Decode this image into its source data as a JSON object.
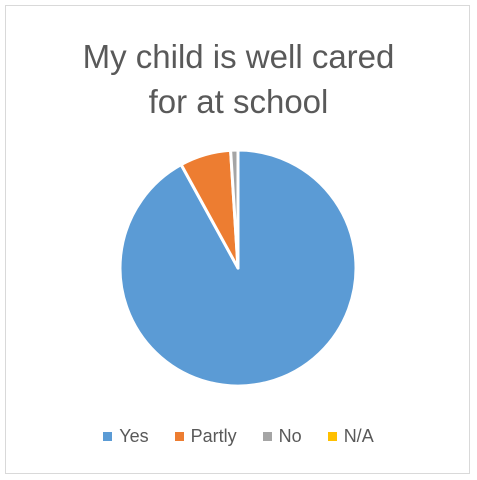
{
  "chart_data": {
    "type": "pie",
    "title_lines": [
      "My child is well cared",
      "for at school"
    ],
    "categories": [
      "Yes",
      "Partly",
      "No",
      "N/A"
    ],
    "values": [
      92,
      7,
      1,
      0
    ],
    "colors": [
      "#5b9bd5",
      "#ed7d31",
      "#a5a5a5",
      "#ffc000"
    ],
    "start_angle_deg": 0,
    "direction": "clockwise",
    "legend_position": "bottom"
  }
}
